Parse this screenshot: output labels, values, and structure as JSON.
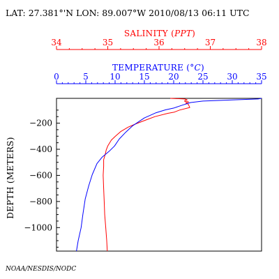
{
  "header": {
    "location_time": "LAT: 27.381°'N LON: 89.007°W 2010/08/13 06:11 UTC"
  },
  "credit": "NOAA/NESDIS/NODC",
  "colors": {
    "salinity": "#ff0000",
    "temperature": "#0000ff",
    "axes": "#000000"
  },
  "chart_data": {
    "type": "line",
    "title": "",
    "y_axis": {
      "label": "DEPTH (METERS)",
      "range": [
        -1180,
        -10
      ],
      "ticks": [
        -200,
        -400,
        -600,
        -800,
        -1000
      ],
      "tick_labels": [
        "−200",
        "−400",
        "−600",
        "−800",
        "−1000"
      ]
    },
    "salinity_axis": {
      "position": "top",
      "label_main": "SALINITY (",
      "label_unit": "PPT",
      "label_close": ")",
      "range": [
        34,
        38
      ],
      "ticks": [
        34,
        35,
        36,
        37,
        38
      ],
      "tick_labels": [
        "34",
        "35",
        "36",
        "37",
        "38"
      ]
    },
    "temperature_axis": {
      "position": "top",
      "label_main": "TEMPERATURE (",
      "label_unit": "°C",
      "label_close": ")",
      "range": [
        0,
        35
      ],
      "ticks": [
        0,
        5,
        10,
        15,
        20,
        25,
        30,
        35
      ],
      "tick_labels": [
        "0",
        "5",
        "10",
        "15",
        "20",
        "25",
        "30",
        "35"
      ]
    },
    "series": [
      {
        "axis": "salinity",
        "points": [
          [
            36.22,
            -10
          ],
          [
            36.5,
            -15
          ],
          [
            36.55,
            -22
          ],
          [
            36.5,
            -28
          ],
          [
            36.5,
            -33
          ],
          [
            36.58,
            -38
          ],
          [
            36.52,
            -45
          ],
          [
            36.57,
            -55
          ],
          [
            36.6,
            -80
          ],
          [
            36.4,
            -100
          ],
          [
            36.3,
            -115
          ],
          [
            36.17,
            -125
          ],
          [
            35.92,
            -150
          ],
          [
            35.75,
            -175
          ],
          [
            35.55,
            -205
          ],
          [
            35.4,
            -230
          ],
          [
            35.25,
            -265
          ],
          [
            35.15,
            -300
          ],
          [
            35.07,
            -330
          ],
          [
            35.0,
            -375
          ],
          [
            34.97,
            -405
          ],
          [
            34.95,
            -440
          ],
          [
            34.92,
            -480
          ],
          [
            34.92,
            -530
          ],
          [
            34.91,
            -600
          ],
          [
            34.92,
            -700
          ],
          [
            34.93,
            -800
          ],
          [
            34.94,
            -900
          ],
          [
            34.96,
            -1000
          ],
          [
            34.98,
            -1100
          ],
          [
            34.99,
            -1180
          ]
        ]
      },
      {
        "axis": "temperature",
        "points": [
          [
            35.0,
            -10
          ],
          [
            34.4,
            -15
          ],
          [
            30.0,
            -22
          ],
          [
            27.0,
            -27
          ],
          [
            25.0,
            -31
          ],
          [
            22.9,
            -42
          ],
          [
            21.5,
            -62
          ],
          [
            20.1,
            -83
          ],
          [
            18.6,
            -98
          ],
          [
            17.0,
            -120
          ],
          [
            15.0,
            -160
          ],
          [
            13.0,
            -220
          ],
          [
            11.8,
            -270
          ],
          [
            10.7,
            -322
          ],
          [
            9.9,
            -375
          ],
          [
            9.0,
            -415
          ],
          [
            7.8,
            -460
          ],
          [
            6.9,
            -510
          ],
          [
            6.1,
            -595
          ],
          [
            5.5,
            -680
          ],
          [
            4.9,
            -780
          ],
          [
            4.5,
            -900
          ],
          [
            4.2,
            -1000
          ],
          [
            3.7,
            -1100
          ],
          [
            3.4,
            -1180
          ]
        ]
      }
    ],
    "grid": false,
    "legend": "none"
  }
}
